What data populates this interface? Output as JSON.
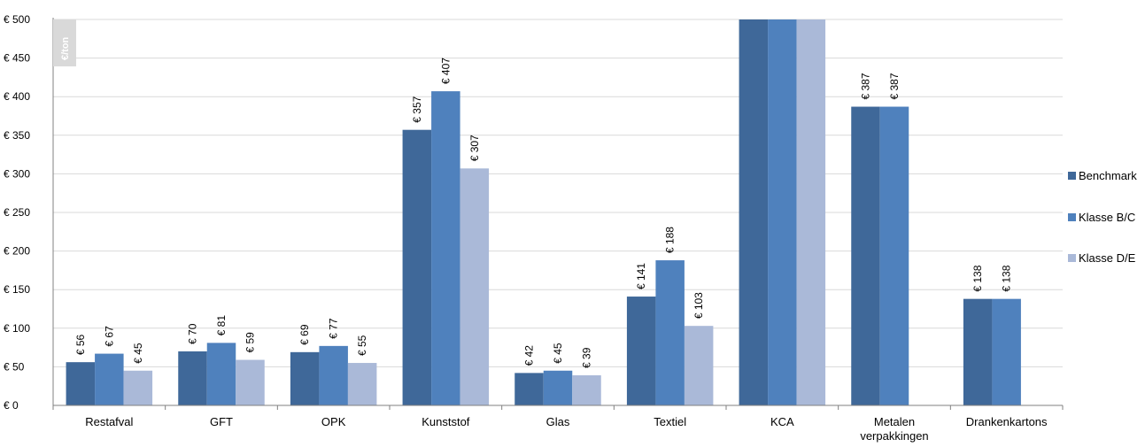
{
  "chart_data": {
    "type": "bar",
    "unit_label": "€/ton",
    "categories": [
      "Restafval",
      "GFT",
      "OPK",
      "Kunststof",
      "Glas",
      "Textiel",
      "KCA",
      "Metalen verpakkingen",
      "Drankenkartons"
    ],
    "series": [
      {
        "name": "Benchmark",
        "color": "#3f6899",
        "values": [
          56,
          70,
          69,
          357,
          42,
          141,
          500,
          387,
          138
        ],
        "labels": [
          "€ 56",
          "€ 70",
          "€ 69",
          "€ 357",
          "€ 42",
          "€ 141",
          null,
          "€ 387",
          "€ 138"
        ]
      },
      {
        "name": "Klasse B/C",
        "color": "#4f81bd",
        "values": [
          67,
          81,
          77,
          407,
          45,
          188,
          500,
          387,
          138
        ],
        "labels": [
          "€ 67",
          "€ 81",
          "€ 77",
          "€ 407",
          "€ 45",
          "€ 188",
          null,
          "€ 387",
          "€ 138"
        ]
      },
      {
        "name": "Klasse D/E",
        "color": "#aab9d8",
        "values": [
          45,
          59,
          55,
          307,
          39,
          103,
          500,
          null,
          null
        ],
        "labels": [
          "€ 45",
          "€ 59",
          "€ 55",
          "€ 307",
          "€ 39",
          "€ 103",
          null,
          null,
          null
        ]
      }
    ],
    "ylim": [
      0,
      500
    ],
    "yticks": [
      0,
      50,
      100,
      150,
      200,
      250,
      300,
      350,
      400,
      450,
      500
    ],
    "ytick_labels": [
      "€ 0",
      "€ 50",
      "€ 100",
      "€ 150",
      "€ 200",
      "€ 250",
      "€ 300",
      "€ 350",
      "€ 400",
      "€ 450",
      "€ 500"
    ],
    "grid": true,
    "legend": "right"
  }
}
